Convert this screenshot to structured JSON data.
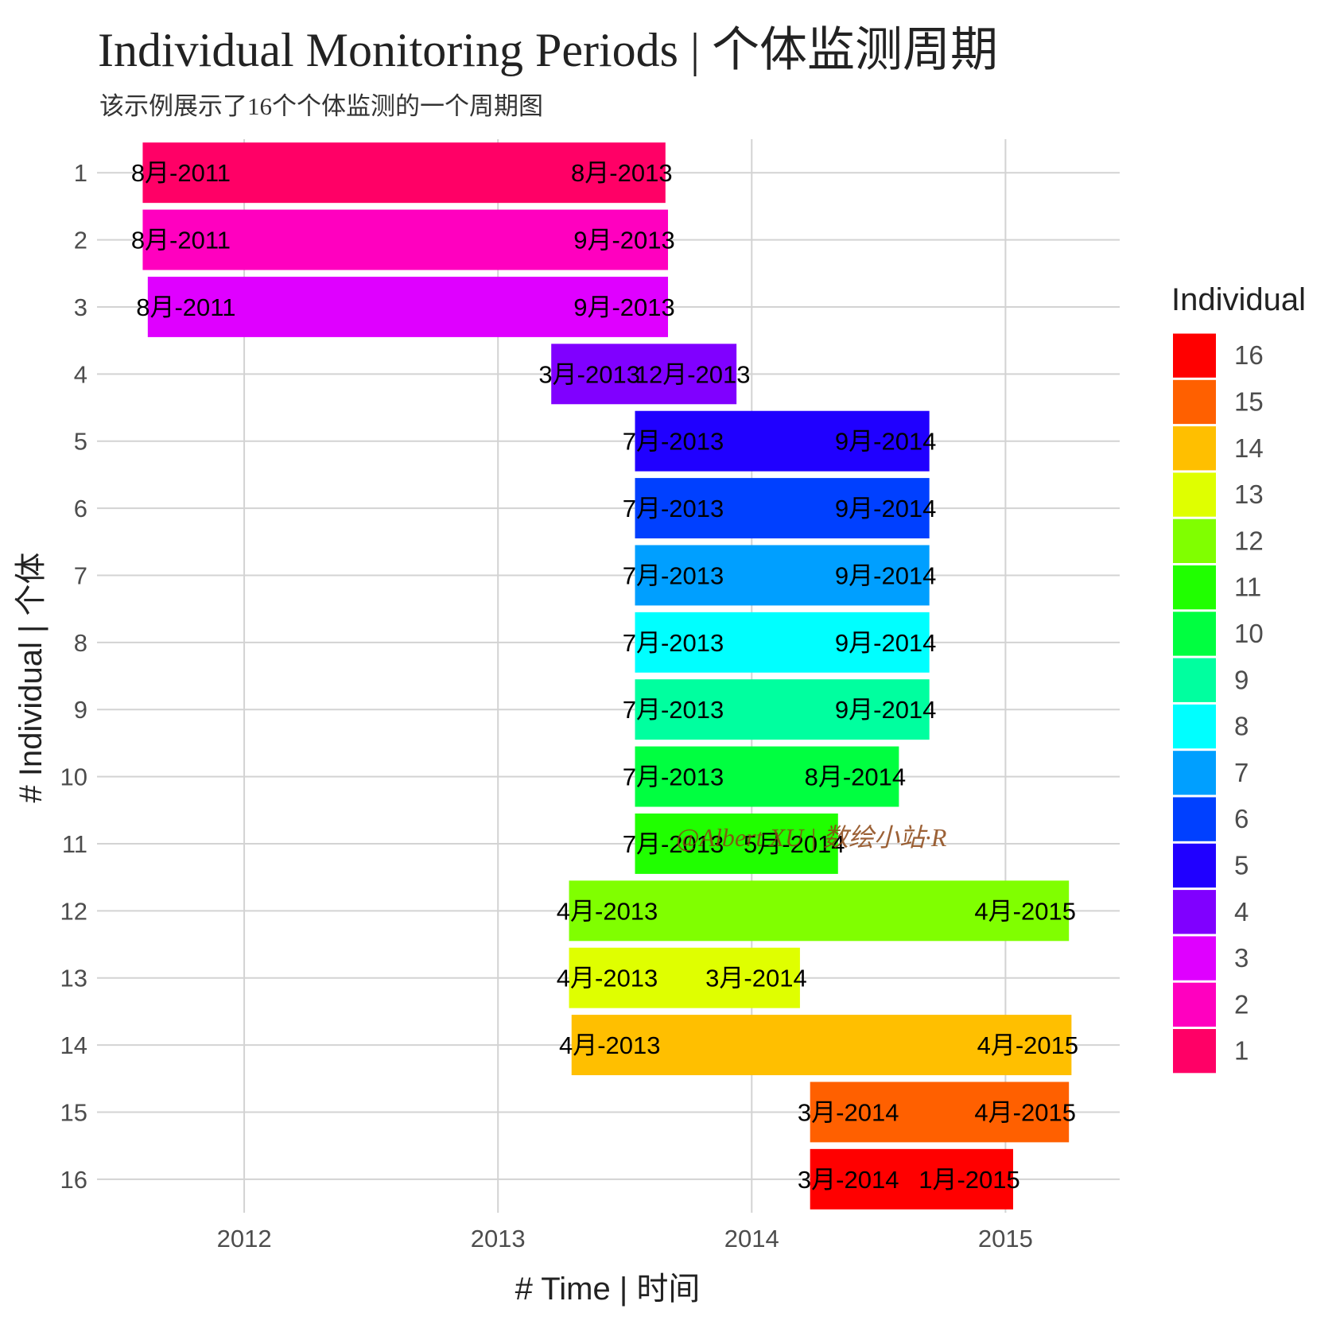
{
  "chart_data": {
    "type": "gantt-bar",
    "title": "Individual Monitoring Periods | 个体监测周期",
    "subtitle": "该示例展示了16个个体监测的一个周期图",
    "xlabel": "# Time | 时间",
    "ylabel": "# Individual | 个体",
    "x_ticks": [
      "2012",
      "2013",
      "2014",
      "2015"
    ],
    "xlim": [
      2011.42,
      2015.45
    ],
    "grid": true,
    "legend": {
      "title": "Individual",
      "placement": "right",
      "order": [
        16,
        15,
        14,
        13,
        12,
        11,
        10,
        9,
        8,
        7,
        6,
        5,
        4,
        3,
        2,
        1
      ]
    },
    "watermark": "@Albert XU | 数绘小站·R",
    "series": [
      {
        "name": "1",
        "start": 2011.6,
        "end": 2013.66,
        "start_label": "8月-2011",
        "end_label": "8月-2013",
        "color": "#FF0066"
      },
      {
        "name": "2",
        "start": 2011.6,
        "end": 2013.67,
        "start_label": "8月-2011",
        "end_label": "9月-2013",
        "color": "#FF00BF"
      },
      {
        "name": "3",
        "start": 2011.62,
        "end": 2013.67,
        "start_label": "8月-2011",
        "end_label": "9月-2013",
        "color": "#DF00FF"
      },
      {
        "name": "4",
        "start": 2013.21,
        "end": 2013.94,
        "start_label": "3月-2013",
        "end_label": "12月-2013",
        "color": "#8000FF"
      },
      {
        "name": "5",
        "start": 2013.54,
        "end": 2014.7,
        "start_label": "7月-2013",
        "end_label": "9月-2014",
        "color": "#2000FF"
      },
      {
        "name": "6",
        "start": 2013.54,
        "end": 2014.7,
        "start_label": "7月-2013",
        "end_label": "9月-2014",
        "color": "#0040FF"
      },
      {
        "name": "7",
        "start": 2013.54,
        "end": 2014.7,
        "start_label": "7月-2013",
        "end_label": "9月-2014",
        "color": "#009FFF"
      },
      {
        "name": "8",
        "start": 2013.54,
        "end": 2014.7,
        "start_label": "7月-2013",
        "end_label": "9月-2014",
        "color": "#00FFFF"
      },
      {
        "name": "9",
        "start": 2013.54,
        "end": 2014.7,
        "start_label": "7月-2013",
        "end_label": "9月-2014",
        "color": "#00FF9F"
      },
      {
        "name": "10",
        "start": 2013.54,
        "end": 2014.58,
        "start_label": "7月-2013",
        "end_label": "8月-2014",
        "color": "#00FF40"
      },
      {
        "name": "11",
        "start": 2013.54,
        "end": 2014.34,
        "start_label": "7月-2013",
        "end_label": "5月-2014",
        "color": "#20FF00"
      },
      {
        "name": "12",
        "start": 2013.28,
        "end": 2015.25,
        "start_label": "4月-2013",
        "end_label": "4月-2015",
        "color": "#80FF00"
      },
      {
        "name": "13",
        "start": 2013.28,
        "end": 2014.19,
        "start_label": "4月-2013",
        "end_label": "3月-2014",
        "color": "#DFFF00"
      },
      {
        "name": "14",
        "start": 2013.29,
        "end": 2015.26,
        "start_label": "4月-2013",
        "end_label": "4月-2015",
        "color": "#FFBF00"
      },
      {
        "name": "15",
        "start": 2014.23,
        "end": 2015.25,
        "start_label": "3月-2014",
        "end_label": "4月-2015",
        "color": "#FF6000"
      },
      {
        "name": "16",
        "start": 2014.23,
        "end": 2015.03,
        "start_label": "3月-2014",
        "end_label": "1月-2015",
        "color": "#FF0000"
      }
    ]
  }
}
